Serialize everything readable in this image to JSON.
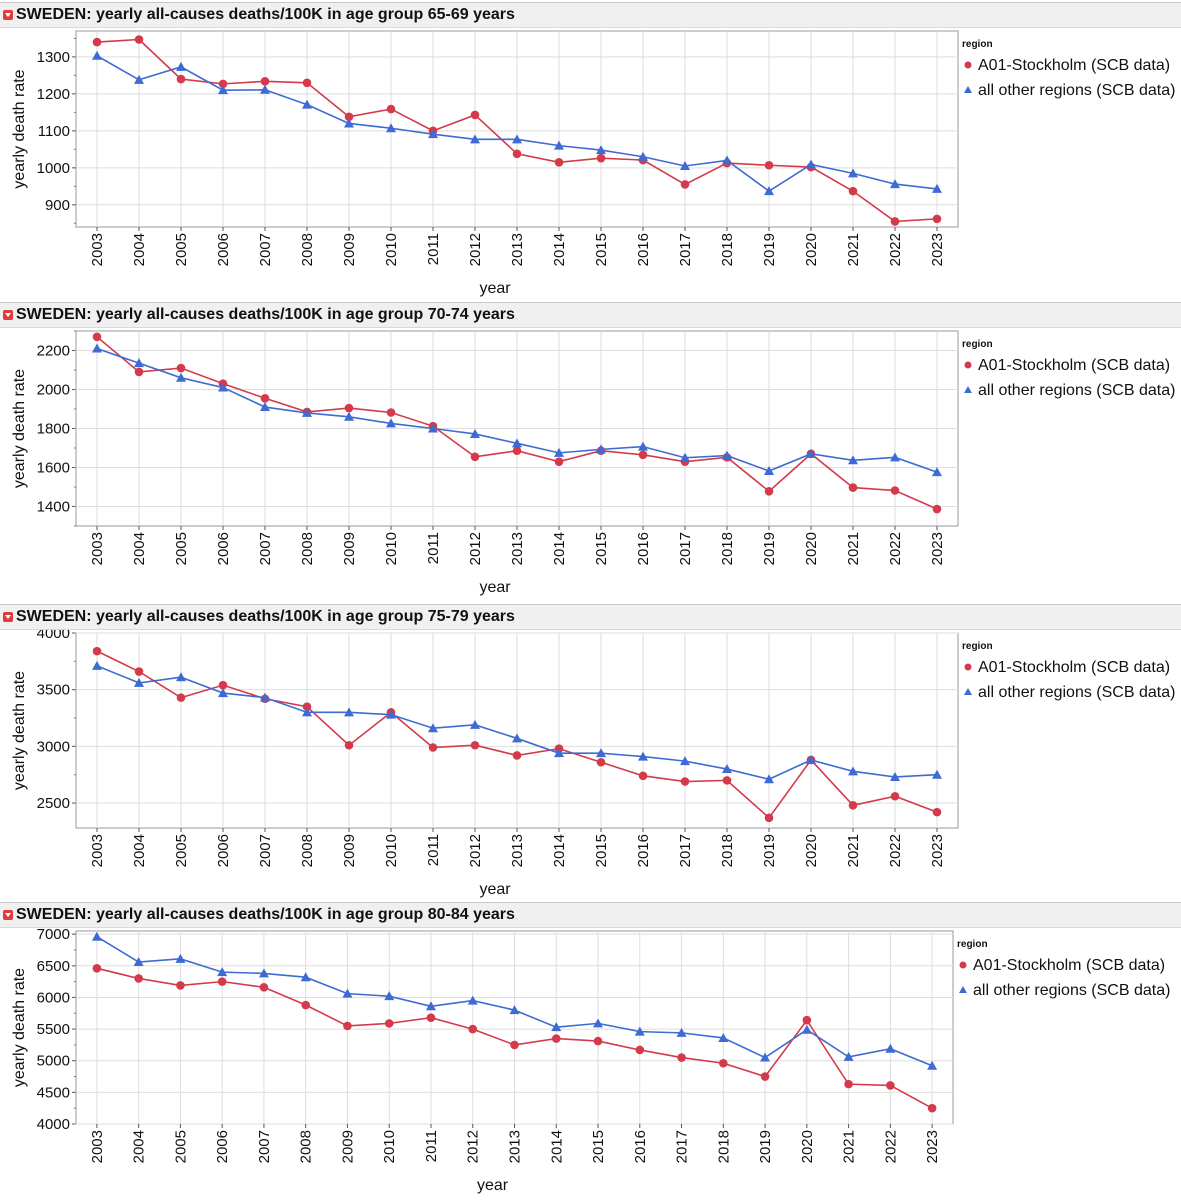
{
  "legend": {
    "title": "region",
    "entries": [
      "A01-Stockholm (SCB data)",
      "all other regions (SCB data)"
    ]
  },
  "colors": {
    "stockholm": "#d43a4a",
    "others": "#3d6bd3"
  },
  "chart_data": [
    {
      "type": "line",
      "title": "SWEDEN: yearly all-causes deaths/100K in age group 65-69 years",
      "xlabel": "year",
      "ylabel": "yearly death rate",
      "categories": [
        2003,
        2004,
        2005,
        2006,
        2007,
        2008,
        2009,
        2010,
        2011,
        2012,
        2013,
        2014,
        2015,
        2016,
        2017,
        2018,
        2019,
        2020,
        2021,
        2022,
        2023
      ],
      "ylim": [
        840,
        1370
      ],
      "yticks": [
        900,
        1000,
        1100,
        1200,
        1300
      ],
      "series": [
        {
          "name": "A01-Stockholm (SCB data)",
          "marker": "circle",
          "values": [
            1340,
            1347,
            1240,
            1227,
            1234,
            1230,
            1138,
            1159,
            1100,
            1143,
            1038,
            1015,
            1026,
            1021,
            955,
            1013,
            1007,
            1002,
            937,
            855,
            862
          ]
        },
        {
          "name": "all other regions (SCB data)",
          "marker": "triangle",
          "values": [
            1303,
            1238,
            1273,
            1210,
            1211,
            1171,
            1120,
            1107,
            1091,
            1077,
            1077,
            1060,
            1048,
            1030,
            1005,
            1020,
            937,
            1009,
            985,
            956,
            943
          ]
        }
      ]
    },
    {
      "type": "line",
      "title": "SWEDEN: yearly all-causes deaths/100K in age group 70-74 years",
      "xlabel": "year",
      "ylabel": "yearly death rate",
      "categories": [
        2003,
        2004,
        2005,
        2006,
        2007,
        2008,
        2009,
        2010,
        2011,
        2012,
        2013,
        2014,
        2015,
        2016,
        2017,
        2018,
        2019,
        2020,
        2021,
        2022,
        2023
      ],
      "ylim": [
        1300,
        2300
      ],
      "yticks": [
        1400,
        1600,
        1800,
        2000,
        2200
      ],
      "series": [
        {
          "name": "A01-Stockholm (SCB data)",
          "marker": "circle",
          "values": [
            2270,
            2090,
            2110,
            2030,
            1955,
            1885,
            1905,
            1882,
            1812,
            1655,
            1686,
            1630,
            1686,
            1665,
            1630,
            1652,
            1478,
            1670,
            1497,
            1482,
            1387
          ]
        },
        {
          "name": "all other regions (SCB data)",
          "marker": "triangle",
          "values": [
            2210,
            2135,
            2060,
            2010,
            1910,
            1880,
            1860,
            1826,
            1800,
            1772,
            1724,
            1675,
            1693,
            1707,
            1650,
            1661,
            1582,
            1670,
            1637,
            1652,
            1576
          ]
        }
      ]
    },
    {
      "type": "line",
      "title": "SWEDEN: yearly all-causes deaths/100K in age group 75-79 years",
      "xlabel": "year",
      "ylabel": "yearly death rate",
      "categories": [
        2003,
        2004,
        2005,
        2006,
        2007,
        2008,
        2009,
        2010,
        2011,
        2012,
        2013,
        2014,
        2015,
        2016,
        2017,
        2018,
        2019,
        2020,
        2021,
        2022,
        2023
      ],
      "ylim": [
        2280,
        4000
      ],
      "yticks": [
        2500,
        3000,
        3500,
        4000
      ],
      "series": [
        {
          "name": "A01-Stockholm (SCB data)",
          "marker": "circle",
          "values": [
            3840,
            3660,
            3430,
            3540,
            3420,
            3350,
            3010,
            3300,
            2990,
            3010,
            2920,
            2980,
            2860,
            2740,
            2690,
            2700,
            2370,
            2880,
            2480,
            2560,
            2420
          ]
        },
        {
          "name": "all other regions (SCB data)",
          "marker": "triangle",
          "values": [
            3710,
            3560,
            3610,
            3470,
            3430,
            3300,
            3300,
            3280,
            3160,
            3190,
            3070,
            2940,
            2940,
            2910,
            2870,
            2800,
            2710,
            2880,
            2780,
            2730,
            2750
          ]
        }
      ]
    },
    {
      "type": "line",
      "title": "SWEDEN: yearly all-causes deaths/100K in age group 80-84 years",
      "xlabel": "year",
      "ylabel": "yearly death rate",
      "categories": [
        2003,
        2004,
        2005,
        2006,
        2007,
        2008,
        2009,
        2010,
        2011,
        2012,
        2013,
        2014,
        2015,
        2016,
        2017,
        2018,
        2019,
        2020,
        2021,
        2022,
        2023
      ],
      "ylim": [
        4000,
        7050
      ],
      "yticks": [
        4000,
        4500,
        5000,
        5500,
        6000,
        6500,
        7000
      ],
      "series": [
        {
          "name": "A01-Stockholm (SCB data)",
          "marker": "circle",
          "values": [
            6460,
            6300,
            6190,
            6250,
            6160,
            5880,
            5550,
            5590,
            5680,
            5500,
            5250,
            5350,
            5310,
            5170,
            5050,
            4960,
            4750,
            5640,
            4630,
            4610,
            4250
          ]
        },
        {
          "name": "all other regions (SCB data)",
          "marker": "triangle",
          "values": [
            6960,
            6560,
            6610,
            6400,
            6380,
            6320,
            6060,
            6020,
            5860,
            5950,
            5800,
            5530,
            5590,
            5460,
            5440,
            5360,
            5050,
            5490,
            5060,
            5190,
            4920
          ]
        }
      ]
    }
  ]
}
